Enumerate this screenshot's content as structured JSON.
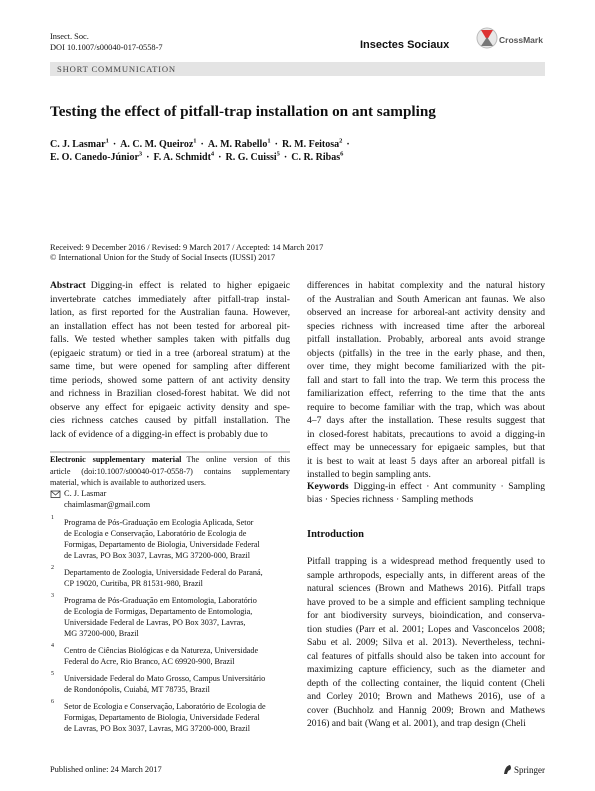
{
  "header": {
    "journal_abbrev": "Insect. Soc.",
    "doi": "DOI 10.1007/s00040-017-0558-7",
    "journal": "Insectes Sociaux",
    "crossmark": "CrossMark"
  },
  "section_label": "SHORT COMMUNICATION",
  "title": "Testing the effect of pitfall-trap installation on ant sampling",
  "separator": "·",
  "authors": [
    [
      {
        "name": "C. J. Lasmar",
        "aff": "1"
      },
      {
        "name": "A. C. M. Queiroz",
        "aff": "1"
      },
      {
        "name": "A. M. Rabello",
        "aff": "1"
      },
      {
        "name": "R. M. Feitosa",
        "aff": "2"
      }
    ],
    [
      {
        "name": "E. O. Canedo-Júnior",
        "aff": "3"
      },
      {
        "name": "F. A. Schmidt",
        "aff": "4"
      },
      {
        "name": "R. G. Cuissi",
        "aff": "5"
      },
      {
        "name": "C. R. Ribas",
        "aff": "6"
      }
    ]
  ],
  "dates": "Received: 9 December 2016 / Revised: 9 March 2017 / Accepted: 14 March 2017",
  "copyright": "© International Union for the Study of Social Insects (IUSSI) 2017",
  "abstract": {
    "label": "Abstract",
    "left_lines": [
      "Digging-in effect is related to higher epigaeic",
      "invertebrate catches immediately after pitfall-trap instal-",
      "lation, as first reported for the Australian fauna. However,",
      "an installation effect has not been tested for arboreal pit-",
      "falls. We tested whether samples taken with pitfalls dug",
      "(epigaeic stratum) or tied in a tree (arboreal stratum) at the",
      "same time, but were opened for sampling after different",
      "time periods, showed some pattern of ant activity density",
      "and richness in Brazilian closed-forest habitat. We did not",
      "observe any effect for epigaeic activity density and spe-",
      "cies richness catches caused by pitfall installation. The",
      "lack of evidence of a digging-in effect is probably due to"
    ],
    "right_lines": [
      "differences in habitat complexity and the natural history",
      "of the Australian and South American ant faunas. We also",
      "observed an increase for arboreal-ant activity density and",
      "species richness with increased time after the arboreal",
      "pitfall installation. Probably, arboreal ants avoid strange",
      "objects (pitfalls) in the tree in the early phase, and then,",
      "over time, they might become familiarized with the pit-",
      "fall and start to fall into the trap. We term this process the",
      "familiarization effect, referring to the time that the ants",
      "require to become familiar with the trap, which was about",
      "4–7 days after the installation. These results suggest that",
      "in closed-forest habitats, precautions to avoid a digging-in",
      "effect may be unnecessary for epigaeic samples, but that",
      "it is best to wait at least 5 days after an arboreal pitfall is",
      "installed to begin sampling ants."
    ]
  },
  "keywords": {
    "label": "Keywords",
    "lines": [
      "Digging-in effect · Ant community · Sampling",
      "bias · Species richness · Sampling methods"
    ]
  },
  "supplementary": {
    "label": "Electronic supplementary material",
    "lines": [
      "The online version of this",
      "article (doi:10.1007/s00040-017-0558-7) contains supplementary",
      "material, which is available to authorized users."
    ]
  },
  "correspondence": {
    "name": "C. J. Lasmar",
    "email": "chaimlasmar@gmail.com"
  },
  "affiliations": [
    {
      "num": "1",
      "lines": [
        "Programa de Pós-Graduação em Ecologia Aplicada, Setor",
        "de Ecologia e Conservação, Laboratório de Ecologia de",
        "Formigas, Departamento de Biologia, Universidade Federal",
        "de Lavras, PO Box 3037, Lavras, MG 37200-000, Brazil"
      ]
    },
    {
      "num": "2",
      "lines": [
        "Departamento de Zoologia, Universidade Federal do Paraná,",
        "CP 19020, Curitiba, PR 81531-980, Brazil"
      ]
    },
    {
      "num": "3",
      "lines": [
        "Programa de Pós-Graduação em Entomologia, Laboratório",
        "de Ecologia de Formigas, Departamento de Entomologia,",
        "Universidade Federal de Lavras, PO Box 3037, Lavras,",
        "MG 37200-000, Brazil"
      ]
    },
    {
      "num": "4",
      "lines": [
        "Centro de Ciências Biológicas e da Natureza, Universidade",
        "Federal do Acre, Rio Branco, AC 69920-900, Brazil"
      ]
    },
    {
      "num": "5",
      "lines": [
        "Universidade Federal do Mato Grosso, Campus Universitário",
        "de Rondonópolis, Cuiabá, MT 78735, Brazil"
      ]
    },
    {
      "num": "6",
      "lines": [
        "Setor de Ecologia e Conservação, Laboratório de Ecologia de",
        "Formigas, Departamento de Biologia, Universidade Federal",
        "de Lavras, PO Box 3037, Lavras, MG 37200-000, Brazil"
      ]
    }
  ],
  "introduction": {
    "heading": "Introduction",
    "lines": [
      "Pitfall trapping is a widespread method frequently used to",
      "sample arthropods, especially ants, in different areas of the",
      "natural sciences (Brown and Mathews 2016). Pitfall traps",
      "have proved to be a simple and efficient sampling technique",
      "for ant biodiversity surveys, bioindication, and conserva-",
      "tion studies (Parr et al. 2001; Lopes and Vasconcelos 2008;",
      "Sabu et al. 2009; Silva et al. 2013). Nevertheless, techni-",
      "cal features of pitfalls should also be taken into account for",
      "maximizing capture efficiency, such as the diameter and",
      "depth of the collecting container, the liquid content (Cheli",
      "and Corley 2010; Brown and Mathews 2016), use of a",
      "cover (Buchholz and Hannig 2009; Brown and Mathews",
      "2016) and bait (Wang et al. 2001), and trap design (Cheli"
    ]
  },
  "footer": {
    "published": "Published online: 24 March 2017",
    "publisher": "Springer"
  }
}
